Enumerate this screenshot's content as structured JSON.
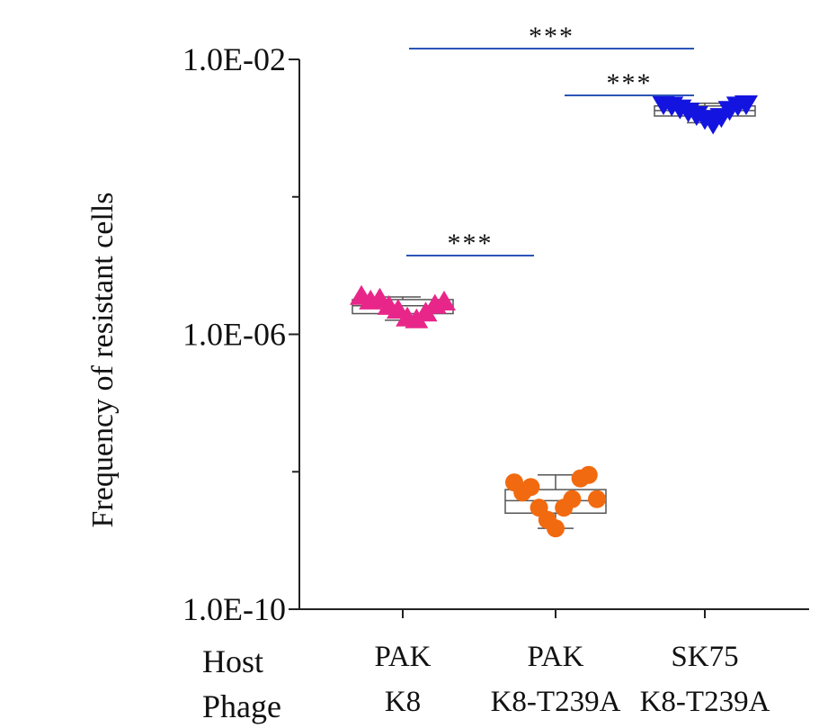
{
  "chart_data": {
    "type": "scatter",
    "title": "",
    "xlabel": "",
    "ylabel": "Frequency of resistant cells",
    "yscale": "log",
    "ylim": [
      1e-10,
      0.01
    ],
    "yticks": [
      {
        "value": 0.01,
        "label": "1.0E-02"
      },
      {
        "value": 1e-06,
        "label": "1.0E-06"
      },
      {
        "value": 1e-10,
        "label": "1.0E-10"
      }
    ],
    "yminor_ticks": [
      0.0001,
      1e-08
    ],
    "row_labels": {
      "host": "Host",
      "phage": "Phage"
    },
    "categories": [
      {
        "host": "PAK",
        "phage": "K8"
      },
      {
        "host": "PAK",
        "phage": "K8-T239A"
      },
      {
        "host": "SK75",
        "phage": "K8-T239A"
      }
    ],
    "series": [
      {
        "name": "PAK K8",
        "marker": "triangle-up",
        "color": "#e8268a",
        "values": [
          3.5e-06,
          3e-06,
          3.2e-06,
          2.5e-06,
          2.2e-06,
          1.7e-06,
          1.6e-06,
          2e-06,
          2.6e-06,
          2.9e-06
        ],
        "box": {
          "q1": 2e-06,
          "median": 2.6e-06,
          "q3": 3.2e-06,
          "min": 1.6e-06,
          "max": 3.5e-06
        }
      },
      {
        "name": "PAK K8-T239A",
        "marker": "circle",
        "color": "#f26a0f",
        "values": [
          7e-09,
          5e-09,
          6e-09,
          3e-09,
          2e-09,
          1.5e-09,
          3e-09,
          4e-09,
          8e-09,
          9e-09,
          4e-09
        ],
        "box": {
          "q1": 2.5e-09,
          "median": 3.8e-09,
          "q3": 5.5e-09,
          "min": 1.5e-09,
          "max": 9e-09
        }
      },
      {
        "name": "SK75 K8-T239A",
        "marker": "triangle-down",
        "color": "#1414e0",
        "values": [
          0.0023,
          0.0022,
          0.002,
          0.0018,
          0.0016,
          0.0014,
          0.0012,
          0.0015,
          0.0019,
          0.0022,
          0.0023
        ],
        "box": {
          "q1": 0.0015,
          "median": 0.0018,
          "q3": 0.0021,
          "min": 0.0012,
          "max": 0.0023
        }
      }
    ],
    "significance": [
      {
        "from": 0,
        "to": 1,
        "label": "***"
      },
      {
        "from": 1,
        "to": 2,
        "label": "***"
      },
      {
        "from": 0,
        "to": 2,
        "label": "***"
      }
    ],
    "grid": false,
    "legend": "none"
  }
}
